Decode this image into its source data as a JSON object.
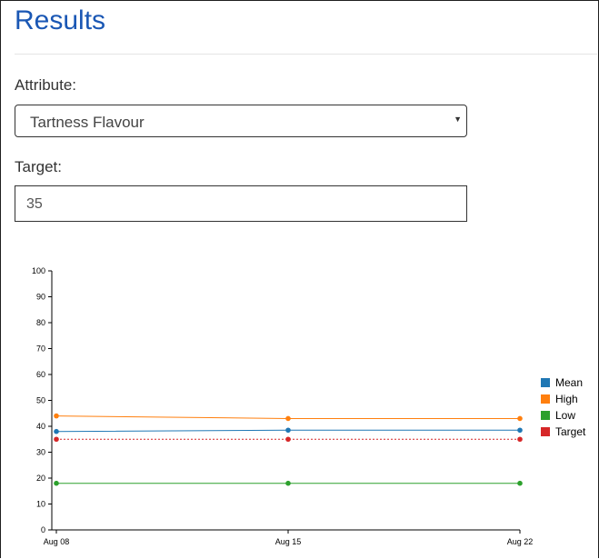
{
  "page": {
    "title": "Results"
  },
  "attribute": {
    "label": "Attribute:",
    "selected": "Tartness Flavour"
  },
  "target": {
    "label": "Target:",
    "value": "35"
  },
  "chart_data": {
    "type": "line",
    "x": [
      "Aug 08",
      "Aug 15",
      "Aug 22"
    ],
    "ylim": [
      0,
      100
    ],
    "yticks": [
      0,
      10,
      20,
      30,
      40,
      50,
      60,
      70,
      80,
      90,
      100
    ],
    "legend_position": "right",
    "series": [
      {
        "name": "Mean",
        "color": "#1f77b4",
        "values": [
          38,
          38.5,
          38.5
        ],
        "dashed": false
      },
      {
        "name": "High",
        "color": "#ff7f0e",
        "values": [
          44,
          43,
          43
        ],
        "dashed": false
      },
      {
        "name": "Low",
        "color": "#2ca02c",
        "values": [
          18,
          18,
          18
        ],
        "dashed": false
      },
      {
        "name": "Target",
        "color": "#d62728",
        "values": [
          35,
          35,
          35
        ],
        "dashed": true
      }
    ]
  }
}
